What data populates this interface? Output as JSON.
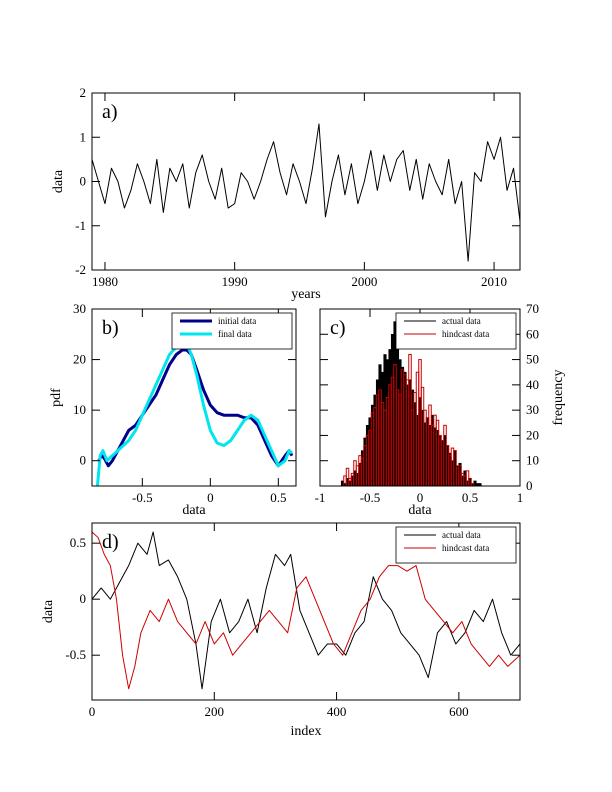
{
  "chart_data": [
    {
      "id": "a",
      "type": "line",
      "panel_label": "a)",
      "xlabel": "years",
      "ylabel": "data",
      "xlim": [
        1979,
        2012
      ],
      "ylim": [
        -2,
        2
      ],
      "xticks": [
        1980,
        1990,
        2000,
        2010
      ],
      "yticks": [
        -2,
        -1,
        0,
        1,
        2
      ],
      "series": [
        {
          "color": "#000000",
          "x": [
            1979.0,
            1979.5,
            1980.0,
            1980.5,
            1981.0,
            1981.5,
            1982.0,
            1982.5,
            1983.0,
            1983.5,
            1984.0,
            1984.5,
            1985.0,
            1985.5,
            1986.0,
            1986.5,
            1987.0,
            1987.5,
            1988.0,
            1988.5,
            1989.0,
            1989.5,
            1990.0,
            1990.5,
            1991.0,
            1991.5,
            1992.0,
            1992.5,
            1993.0,
            1993.5,
            1994.0,
            1994.5,
            1995.0,
            1995.5,
            1996.0,
            1996.5,
            1997.0,
            1997.5,
            1998.0,
            1998.5,
            1999.0,
            1999.5,
            2000.0,
            2000.5,
            2001.0,
            2001.5,
            2002.0,
            2002.5,
            2003.0,
            2003.5,
            2004.0,
            2004.5,
            2005.0,
            2005.5,
            2006.0,
            2006.5,
            2007.0,
            2007.5,
            2008.0,
            2008.5,
            2009.0,
            2009.5,
            2010.0,
            2010.5,
            2011.0,
            2011.5,
            2012.0
          ],
          "y": [
            0.5,
            0.0,
            -0.5,
            0.3,
            0.0,
            -0.6,
            -0.2,
            0.4,
            0.0,
            -0.5,
            0.5,
            -0.7,
            0.3,
            0.0,
            0.4,
            -0.6,
            0.2,
            0.6,
            0.0,
            -0.4,
            0.3,
            -0.6,
            -0.5,
            0.2,
            0.0,
            -0.4,
            0.0,
            0.5,
            0.9,
            0.2,
            -0.3,
            0.4,
            0.0,
            -0.5,
            0.3,
            1.3,
            -0.8,
            0.0,
            0.6,
            -0.3,
            0.4,
            -0.5,
            0.0,
            0.7,
            -0.2,
            0.6,
            0.0,
            0.5,
            0.7,
            -0.2,
            0.5,
            -0.4,
            0.4,
            0.0,
            -0.3,
            0.5,
            -0.5,
            0.0,
            -1.8,
            0.2,
            0.0,
            0.9,
            0.5,
            1.0,
            -0.2,
            0.3,
            -0.9
          ]
        }
      ]
    },
    {
      "id": "b",
      "type": "line",
      "panel_label": "b)",
      "xlabel": "data",
      "ylabel": "pdf",
      "xlim": [
        -0.87,
        0.63
      ],
      "ylim": [
        -5,
        30
      ],
      "xticks": [
        -0.5,
        0,
        0.5
      ],
      "yticks": [
        0,
        10,
        20,
        30
      ],
      "legend": "top-right",
      "series": [
        {
          "name": "initial data",
          "color": "#00008b",
          "x": [
            -0.82,
            -0.8,
            -0.78,
            -0.75,
            -0.72,
            -0.68,
            -0.64,
            -0.6,
            -0.55,
            -0.5,
            -0.45,
            -0.4,
            -0.35,
            -0.3,
            -0.25,
            -0.2,
            -0.17,
            -0.14,
            -0.1,
            -0.05,
            0.0,
            0.05,
            0.1,
            0.15,
            0.2,
            0.25,
            0.3,
            0.35,
            0.4,
            0.45,
            0.5,
            0.55,
            0.58,
            0.6
          ],
          "y": [
            0,
            1,
            0.5,
            -1,
            0,
            2,
            4,
            6,
            7,
            9,
            11,
            13,
            16,
            19,
            21,
            22,
            21.8,
            21,
            18,
            14,
            11,
            9.5,
            9,
            9,
            9,
            8.5,
            8.5,
            7,
            4,
            1,
            -1,
            1,
            2,
            1
          ]
        },
        {
          "name": "final data",
          "color": "#00e5ee",
          "x": [
            -0.83,
            -0.81,
            -0.79,
            -0.76,
            -0.72,
            -0.68,
            -0.64,
            -0.6,
            -0.55,
            -0.5,
            -0.45,
            -0.4,
            -0.35,
            -0.3,
            -0.25,
            -0.2,
            -0.17,
            -0.14,
            -0.1,
            -0.05,
            0.0,
            0.05,
            0.1,
            0.15,
            0.2,
            0.25,
            0.3,
            0.35,
            0.4,
            0.45,
            0.5,
            0.55,
            0.58,
            0.6
          ],
          "y": [
            -5,
            1,
            2,
            0,
            1,
            2,
            3,
            4,
            6,
            9,
            12,
            15,
            18,
            21,
            22.5,
            23.5,
            23,
            21,
            17,
            11,
            6,
            3.5,
            3,
            4,
            6,
            8,
            9,
            8,
            5,
            2,
            -1,
            0,
            2,
            1.5
          ]
        }
      ]
    },
    {
      "id": "c",
      "type": "bar",
      "panel_label": "c)",
      "xlabel": "data",
      "ylabel": "frequency",
      "xlim": [
        -1,
        1
      ],
      "ylim": [
        0,
        70
      ],
      "xticks": [
        -1,
        -0.5,
        0,
        0.5,
        1
      ],
      "yticks": [
        0,
        10,
        20,
        30,
        40,
        50,
        60,
        70
      ],
      "yaxis": "right",
      "legend": "top-right",
      "bin_width": 0.025,
      "series": [
        {
          "name": "actual data",
          "color": "#000000",
          "fill": true,
          "x": [
            -0.775,
            -0.75,
            -0.725,
            -0.7,
            -0.675,
            -0.65,
            -0.625,
            -0.6,
            -0.575,
            -0.55,
            -0.525,
            -0.5,
            -0.475,
            -0.45,
            -0.425,
            -0.4,
            -0.375,
            -0.35,
            -0.325,
            -0.3,
            -0.275,
            -0.25,
            -0.225,
            -0.2,
            -0.175,
            -0.15,
            -0.125,
            -0.1,
            -0.075,
            -0.05,
            -0.025,
            0.0,
            0.025,
            0.05,
            0.075,
            0.1,
            0.125,
            0.15,
            0.175,
            0.2,
            0.225,
            0.25,
            0.275,
            0.3,
            0.325,
            0.35,
            0.375,
            0.4,
            0.425,
            0.45,
            0.475,
            0.5,
            0.525,
            0.55,
            0.575,
            0.6
          ],
          "y": [
            2,
            1,
            3,
            2,
            4,
            6,
            5,
            9,
            14,
            19,
            24,
            27,
            32,
            36,
            42,
            48,
            45,
            52,
            50,
            54,
            60,
            65,
            55,
            50,
            47,
            45,
            40,
            42,
            38,
            33,
            28,
            35,
            30,
            25,
            27,
            24,
            28,
            23,
            22,
            20,
            18,
            20,
            16,
            13,
            10,
            14,
            8,
            9,
            4,
            6,
            2,
            3,
            1,
            2,
            1,
            1
          ]
        },
        {
          "name": "hindcast data",
          "color": "#cc0000",
          "fill": false,
          "x": [
            -0.75,
            -0.725,
            -0.7,
            -0.675,
            -0.65,
            -0.625,
            -0.6,
            -0.575,
            -0.55,
            -0.525,
            -0.5,
            -0.475,
            -0.45,
            -0.425,
            -0.4,
            -0.375,
            -0.35,
            -0.325,
            -0.3,
            -0.275,
            -0.25,
            -0.225,
            -0.2,
            -0.175,
            -0.15,
            -0.125,
            -0.1,
            -0.075,
            -0.05,
            -0.025,
            0.0,
            0.025,
            0.05,
            0.075,
            0.1,
            0.125,
            0.15,
            0.175,
            0.2,
            0.225,
            0.25,
            0.275,
            0.3,
            0.325,
            0.35,
            0.375,
            0.4,
            0.425,
            0.45,
            0.475,
            0.5,
            0.525
          ],
          "y": [
            4,
            7,
            3,
            5,
            10,
            8,
            12,
            11,
            16,
            20,
            22,
            29,
            31,
            36,
            38,
            33,
            30,
            35,
            40,
            43,
            48,
            38,
            36,
            46,
            44,
            42,
            52,
            30,
            37,
            45,
            50,
            39,
            30,
            27,
            32,
            24,
            28,
            26,
            20,
            18,
            24,
            16,
            12,
            15,
            14,
            7,
            8,
            5,
            4,
            6,
            3,
            1
          ]
        }
      ]
    },
    {
      "id": "d",
      "type": "line",
      "panel_label": "d)",
      "xlabel": "index",
      "ylabel": "data",
      "xlim": [
        0,
        700
      ],
      "ylim": [
        -0.9,
        0.68
      ],
      "xticks": [
        0,
        200,
        400,
        600
      ],
      "yticks": [
        -0.5,
        0,
        0.5
      ],
      "legend": "top-right",
      "series": [
        {
          "name": "actual data",
          "color": "#000000",
          "x": [
            0,
            15,
            30,
            45,
            60,
            75,
            90,
            100,
            110,
            125,
            140,
            155,
            170,
            180,
            195,
            210,
            225,
            240,
            255,
            270,
            285,
            300,
            315,
            325,
            340,
            355,
            370,
            385,
            400,
            415,
            430,
            445,
            460,
            475,
            490,
            505,
            520,
            535,
            550,
            565,
            580,
            595,
            610,
            625,
            640,
            655,
            670,
            685,
            700
          ],
          "y": [
            0.0,
            0.1,
            0.0,
            0.15,
            0.3,
            0.5,
            0.4,
            0.6,
            0.3,
            0.35,
            0.2,
            0.0,
            -0.4,
            -0.8,
            -0.2,
            0.0,
            -0.3,
            -0.2,
            0.0,
            -0.3,
            0.1,
            0.4,
            0.3,
            0.4,
            -0.1,
            -0.3,
            -0.5,
            -0.4,
            -0.4,
            -0.5,
            -0.3,
            -0.2,
            0.2,
            0.0,
            -0.1,
            -0.3,
            -0.4,
            -0.5,
            -0.7,
            -0.3,
            -0.2,
            -0.4,
            -0.3,
            -0.1,
            -0.2,
            0.0,
            -0.3,
            -0.5,
            -0.4
          ]
        },
        {
          "name": "hindcast data",
          "color": "#cc0000",
          "x": [
            0,
            10,
            20,
            30,
            40,
            50,
            60,
            70,
            80,
            95,
            110,
            125,
            140,
            155,
            170,
            185,
            200,
            215,
            230,
            245,
            260,
            275,
            290,
            305,
            320,
            335,
            350,
            365,
            380,
            395,
            410,
            425,
            440,
            455,
            470,
            485,
            500,
            515,
            530,
            545,
            560,
            575,
            590,
            605,
            620,
            635,
            650,
            665,
            680,
            700
          ],
          "y": [
            0.6,
            0.55,
            0.4,
            0.3,
            0.0,
            -0.5,
            -0.8,
            -0.6,
            -0.3,
            -0.1,
            -0.2,
            0.0,
            -0.2,
            -0.3,
            -0.4,
            -0.2,
            -0.4,
            -0.3,
            -0.5,
            -0.4,
            -0.3,
            -0.2,
            -0.1,
            -0.2,
            -0.3,
            0.1,
            0.2,
            0.0,
            -0.2,
            -0.4,
            -0.5,
            -0.3,
            -0.1,
            0.0,
            0.2,
            0.3,
            0.3,
            0.25,
            0.3,
            0.0,
            -0.1,
            -0.2,
            -0.3,
            -0.2,
            -0.4,
            -0.5,
            -0.6,
            -0.5,
            -0.6,
            -0.5
          ]
        }
      ]
    }
  ]
}
